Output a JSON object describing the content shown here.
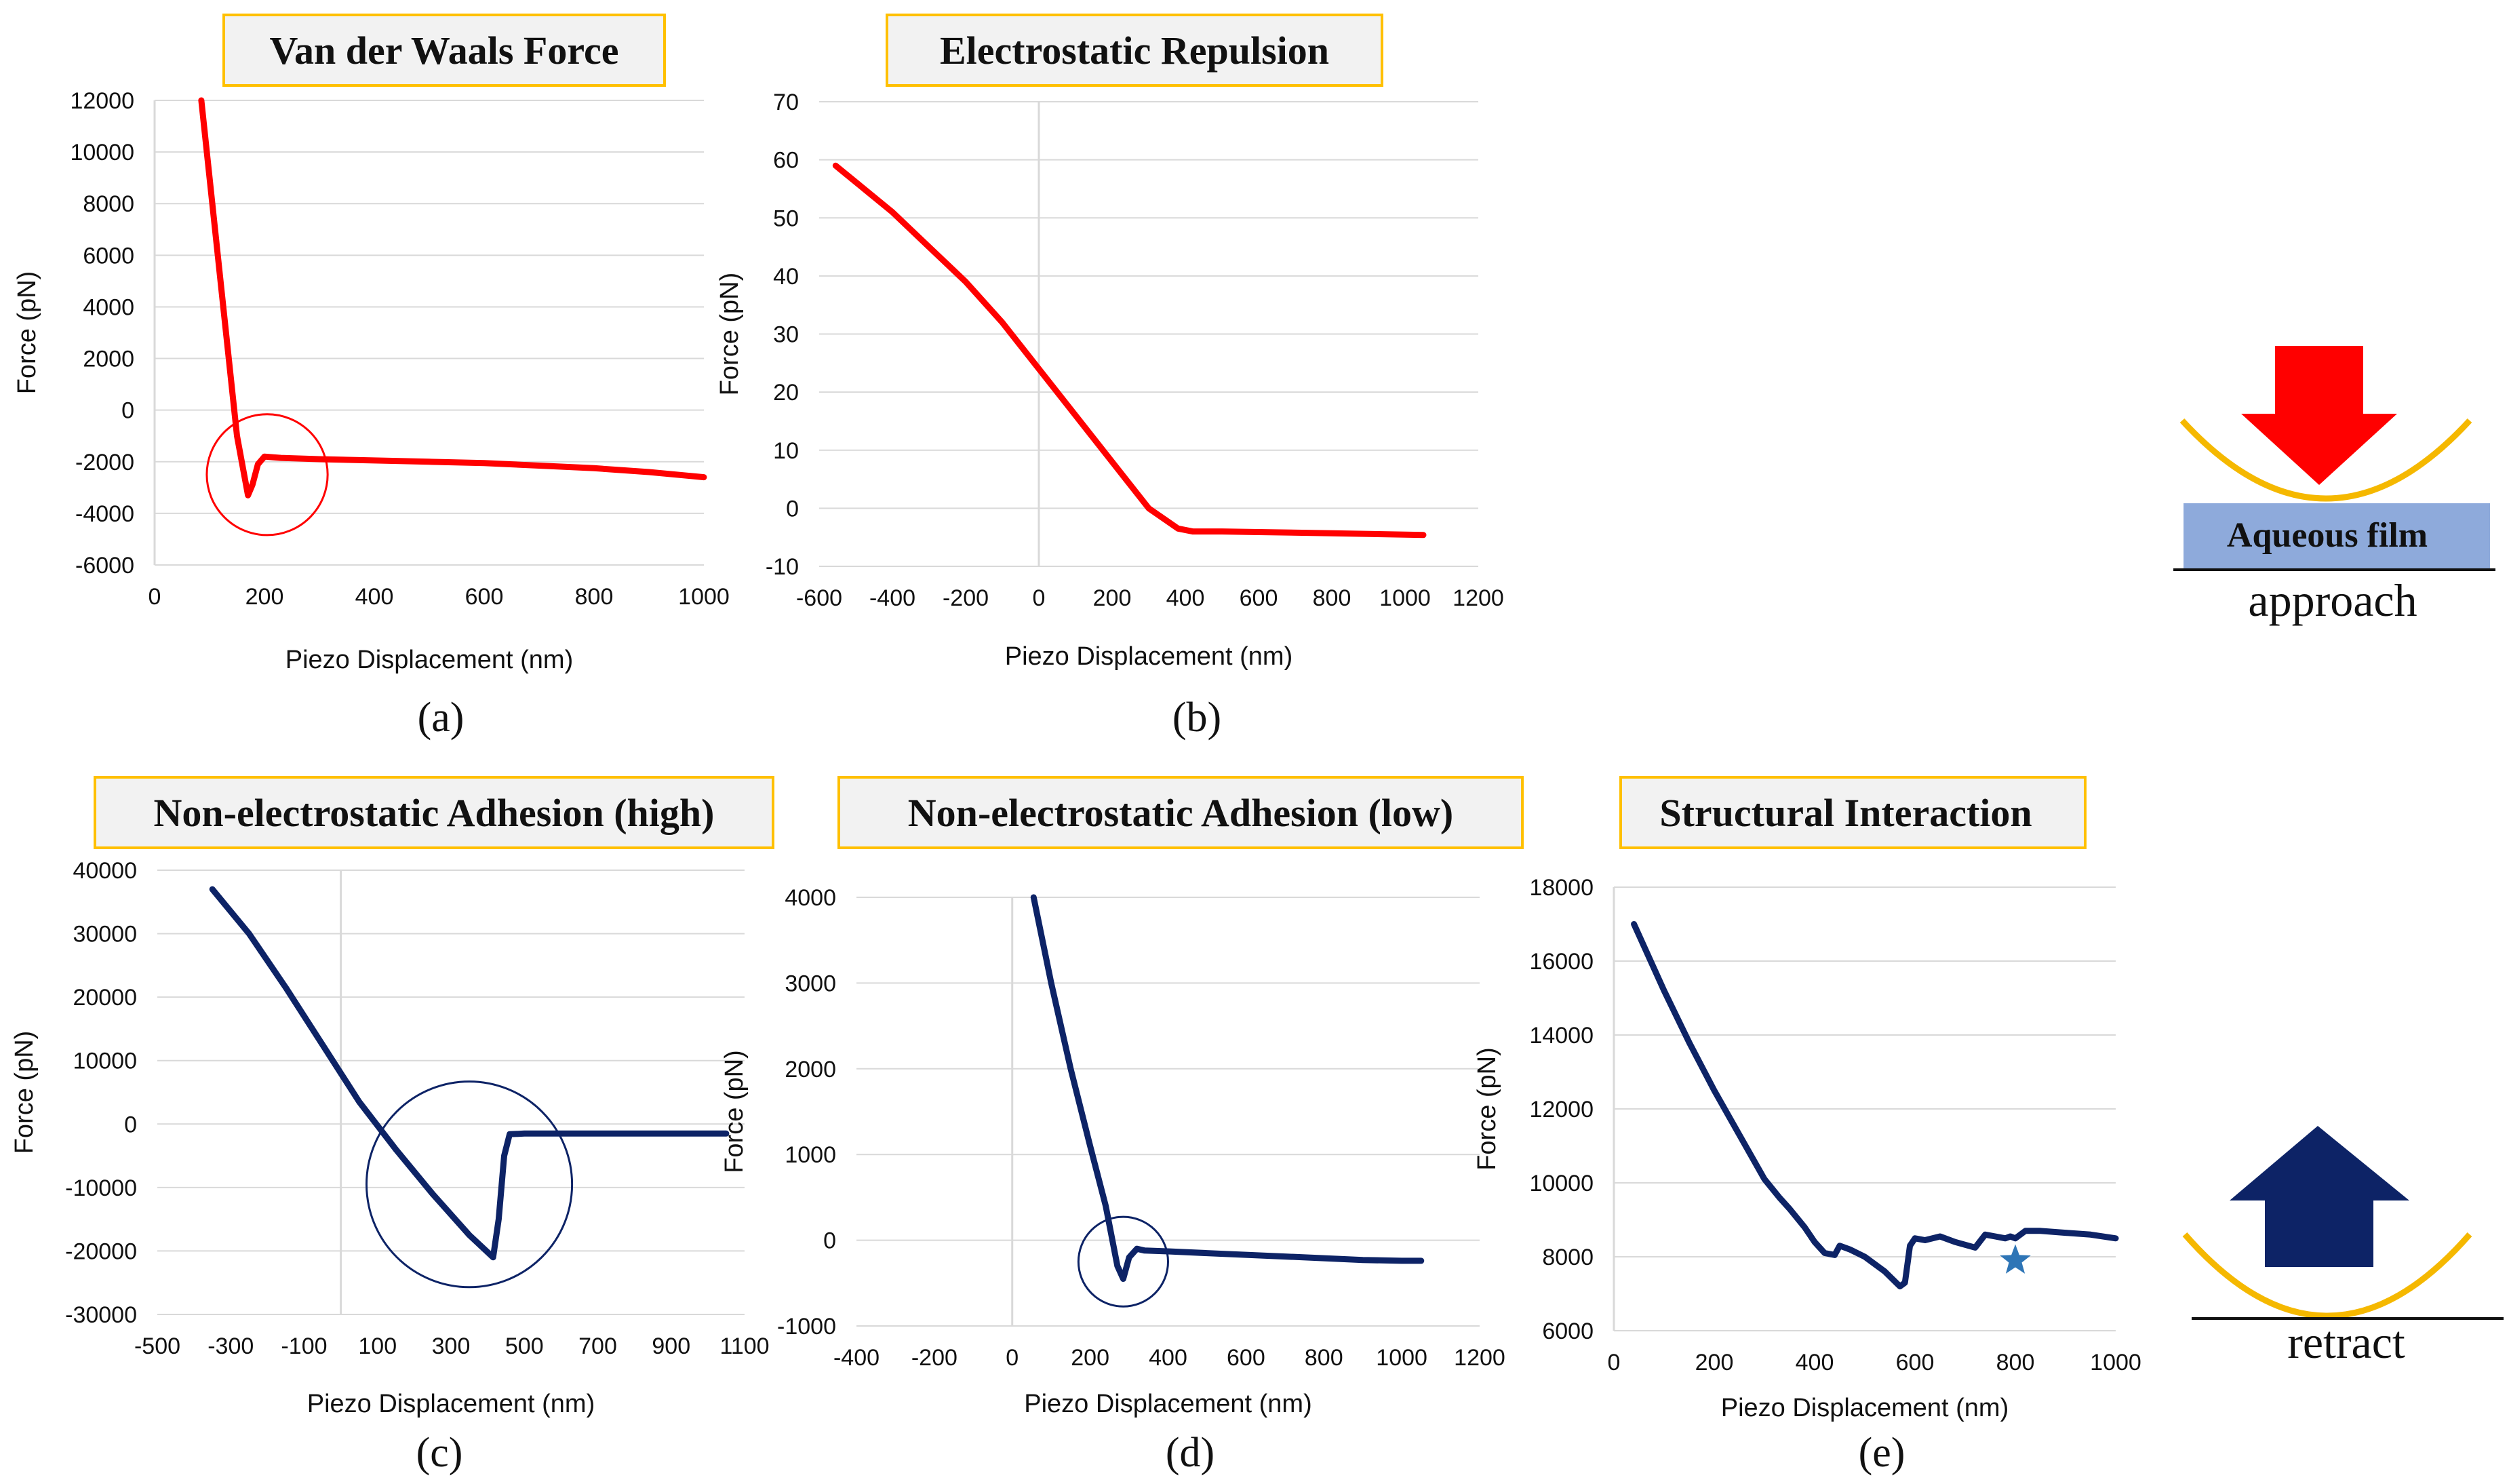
{
  "colors": {
    "approach": "#ff0000",
    "retract": "#0d2366",
    "title_border": "#ffc000",
    "title_fill": "#f2f2f2",
    "grid": "#d9d9d9",
    "film": "#8eaadb",
    "cup": "#f5b800",
    "star": "#2e75b6"
  },
  "legend": {
    "film_label": "Aqueous film",
    "approach_label": "approach",
    "retract_label": "retract"
  },
  "chart_data": [
    {
      "id": "a",
      "type": "line",
      "title": "Van der Waals Force",
      "panel_label": "(a)",
      "xlabel": "Piezo Displacement (nm)",
      "ylabel": "Force (pN)",
      "xlim": [
        0,
        1000
      ],
      "ylim": [
        -6000,
        12000
      ],
      "xticks": [
        0,
        200,
        400,
        600,
        800,
        1000
      ],
      "yticks": [
        -6000,
        -4000,
        -2000,
        0,
        2000,
        4000,
        6000,
        8000,
        10000,
        12000
      ],
      "color": "approach",
      "series": [
        {
          "name": "approach",
          "x": [
            85,
            120,
            150,
            170,
            178,
            188,
            200,
            230,
            300,
            400,
            500,
            600,
            700,
            800,
            900,
            1000
          ],
          "y": [
            12000,
            5000,
            -1000,
            -3300,
            -2900,
            -2100,
            -1800,
            -1850,
            -1900,
            -1950,
            -2000,
            -2050,
            -2150,
            -2250,
            -2400,
            -2600
          ]
        }
      ],
      "annotations": [
        {
          "type": "circle",
          "cx": 205,
          "cy": -2500,
          "r_data_x": 110
        }
      ]
    },
    {
      "id": "b",
      "type": "line",
      "title": "Electrostatic Repulsion",
      "panel_label": "(b)",
      "xlabel": "Piezo Displacement (nm)",
      "ylabel": "Force (pN)",
      "xlim": [
        -600,
        1200
      ],
      "ylim": [
        -10,
        70
      ],
      "xticks": [
        -600,
        -400,
        -200,
        0,
        200,
        400,
        600,
        800,
        1000,
        1200
      ],
      "yticks": [
        -10,
        0,
        10,
        20,
        30,
        40,
        50,
        60,
        70
      ],
      "color": "approach",
      "series": [
        {
          "name": "approach",
          "x": [
            -555,
            -400,
            -300,
            -200,
            -100,
            0,
            100,
            200,
            300,
            380,
            420,
            500,
            600,
            800,
            1050
          ],
          "y": [
            59,
            51,
            45,
            39,
            32,
            24,
            16,
            8,
            0,
            -3.5,
            -4.0,
            -4.0,
            -4.1,
            -4.3,
            -4.6
          ]
        }
      ],
      "annotations": []
    },
    {
      "id": "c",
      "type": "line",
      "title": "Non-electrostatic  Adhesion (high)",
      "panel_label": "(c)",
      "xlabel": "Piezo Displacement (nm)",
      "ylabel": "Force (pN)",
      "xlim": [
        -500,
        1100
      ],
      "ylim": [
        -30000,
        40000
      ],
      "xticks": [
        -500,
        -300,
        -100,
        100,
        300,
        500,
        700,
        900,
        1100
      ],
      "yticks": [
        -30000,
        -20000,
        -10000,
        0,
        10000,
        20000,
        30000,
        40000
      ],
      "color": "retract",
      "series": [
        {
          "name": "retract",
          "x": [
            -350,
            -250,
            -150,
            -50,
            50,
            150,
            250,
            350,
            415,
            430,
            445,
            460,
            500,
            700,
            900,
            1050
          ],
          "y": [
            37000,
            30000,
            21500,
            12500,
            3500,
            -4000,
            -11000,
            -17500,
            -21000,
            -15000,
            -5000,
            -1600,
            -1500,
            -1500,
            -1500,
            -1500
          ]
        }
      ],
      "annotations": [
        {
          "type": "circle",
          "cx": 350,
          "cy": -9500,
          "r_data_x": 280
        }
      ]
    },
    {
      "id": "d",
      "type": "line",
      "title": "Non-electrostatic  Adhesion (low)",
      "panel_label": "(d)",
      "xlabel": "Piezo Displacement (nm)",
      "ylabel": "Force (pN)",
      "xlim": [
        -400,
        1200
      ],
      "ylim": [
        -1000,
        4000
      ],
      "xticks": [
        -400,
        -200,
        0,
        200,
        400,
        600,
        800,
        1000,
        1200
      ],
      "yticks": [
        -1000,
        0,
        1000,
        2000,
        3000,
        4000
      ],
      "color": "retract",
      "series": [
        {
          "name": "retract",
          "x": [
            55,
            100,
            150,
            200,
            240,
            270,
            285,
            300,
            320,
            340,
            400,
            500,
            600,
            700,
            800,
            900,
            1000,
            1050
          ],
          "y": [
            4000,
            3000,
            2000,
            1100,
            400,
            -300,
            -450,
            -200,
            -100,
            -120,
            -130,
            -150,
            -170,
            -190,
            -210,
            -230,
            -240,
            -240
          ]
        }
      ],
      "annotations": [
        {
          "type": "circle",
          "cx": 285,
          "cy": -250,
          "r_data_x": 115
        }
      ]
    },
    {
      "id": "e",
      "type": "line",
      "title": "Structural Interaction",
      "panel_label": "(e)",
      "xlabel": "Piezo Displacement (nm)",
      "ylabel": "Force (pN)",
      "xlim": [
        0,
        1000
      ],
      "ylim": [
        6000,
        18000
      ],
      "xticks": [
        0,
        200,
        400,
        600,
        800,
        1000
      ],
      "yticks": [
        6000,
        8000,
        10000,
        12000,
        14000,
        16000,
        18000
      ],
      "color": "retract",
      "series": [
        {
          "name": "retract",
          "x": [
            40,
            100,
            150,
            200,
            250,
            300,
            330,
            350,
            380,
            400,
            420,
            440,
            450,
            470,
            500,
            540,
            570,
            580,
            590,
            600,
            620,
            650,
            680,
            720,
            740,
            760,
            780,
            790,
            800,
            820,
            850,
            900,
            950,
            1000
          ],
          "y": [
            17000,
            15200,
            13800,
            12500,
            11300,
            10100,
            9600,
            9300,
            8800,
            8400,
            8100,
            8050,
            8300,
            8200,
            8000,
            7600,
            7200,
            7300,
            8300,
            8500,
            8450,
            8550,
            8400,
            8250,
            8600,
            8550,
            8500,
            8550,
            8500,
            8700,
            8700,
            8650,
            8600,
            8500
          ]
        }
      ],
      "annotations": [
        {
          "type": "star",
          "x": 800,
          "y": 7900
        }
      ]
    }
  ]
}
